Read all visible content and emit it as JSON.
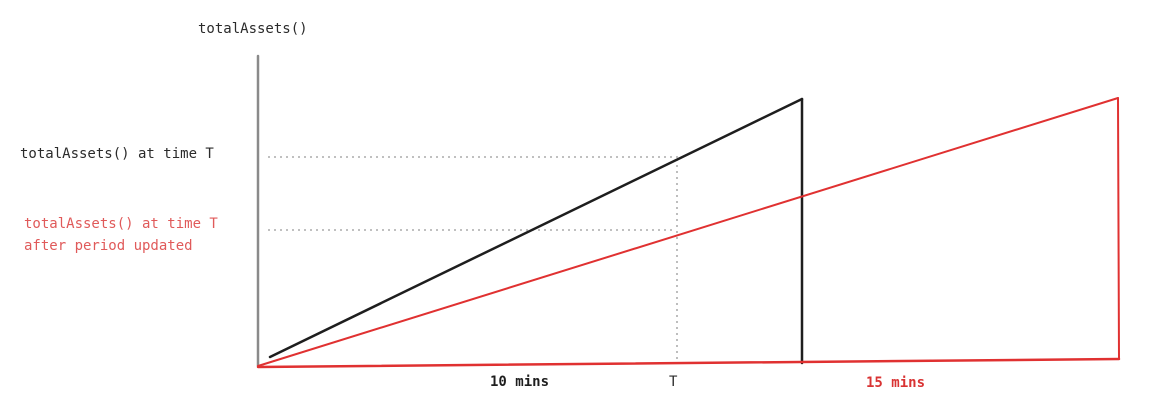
{
  "diagram": {
    "y_axis_title": "totalAssets()",
    "marker_top_label": "totalAssets() at time T",
    "marker_bottom_label_line1": "totalAssets() at time T",
    "marker_bottom_label_line2": "after period updated",
    "x_label_first_period": "10 mins",
    "x_label_time": "T",
    "x_label_second_period": "15 mins",
    "colors": {
      "original": "#1e1e1e",
      "updated": "#e03131",
      "axis": "#8a8a8a",
      "guide": "#9a9a9a",
      "updated_text": "#e05a5a"
    }
  }
}
